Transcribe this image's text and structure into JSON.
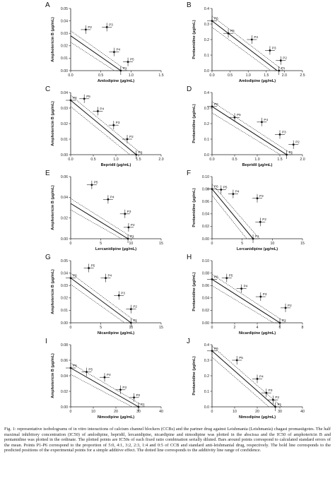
{
  "chart_data": [
    {
      "panel": "A",
      "type": "scatter",
      "xlabel": "Amlodipine (µg/mL)",
      "ylabel": "Amphotericin B (µg/mL)",
      "xlim": [
        0,
        1.5
      ],
      "ylim": [
        0,
        0.05
      ],
      "xticks": [
        "0.0",
        "0.5",
        "1.0",
        "1.5"
      ],
      "yticks": [
        "0.00",
        "0.01",
        "0.02",
        "0.03",
        "0.04",
        "0.05"
      ],
      "yintercept": 0.028,
      "xintercept": 0.83,
      "points": [
        {
          "label": "P1",
          "x": 0.83,
          "y": 0.0
        },
        {
          "label": "P2",
          "x": 0.25,
          "y": 0.033
        },
        {
          "label": "P3",
          "x": 0.6,
          "y": 0.035
        },
        {
          "label": "P4",
          "x": 0.72,
          "y": 0.015
        },
        {
          "label": "P5",
          "x": 0.95,
          "y": 0.007
        }
      ]
    },
    {
      "panel": "B",
      "type": "scatter",
      "xlabel": "Amlodipine (µg/mL)",
      "ylabel": "Pentamidine (µg/mL)",
      "xlim": [
        0,
        2.5
      ],
      "ylim": [
        0,
        0.4
      ],
      "xticks": [
        "0.0",
        "0.5",
        "1.0",
        "1.5",
        "2.0",
        "2.5"
      ],
      "yticks": [
        "0.0",
        "0.1",
        "0.2",
        "0.3",
        "0.4"
      ],
      "yintercept": 0.32,
      "xintercept": 1.8,
      "points": [
        {
          "label": "P6",
          "x": 0.0,
          "y": 0.32
        },
        {
          "label": "P5",
          "x": 0.45,
          "y": 0.24
        },
        {
          "label": "P4",
          "x": 1.1,
          "y": 0.2
        },
        {
          "label": "P3",
          "x": 1.6,
          "y": 0.13
        },
        {
          "label": "P2",
          "x": 1.9,
          "y": 0.065
        },
        {
          "label": "P1",
          "x": 1.85,
          "y": 0.0
        }
      ]
    },
    {
      "panel": "C",
      "type": "scatter",
      "xlabel": "Bepridil (µg/mL)",
      "ylabel": "Amphotericin B (µg/mL)",
      "xlim": [
        0,
        2.0
      ],
      "ylim": [
        0,
        0.04
      ],
      "xticks": [
        "0.0",
        "0.5",
        "1.0",
        "1.5",
        "2.0"
      ],
      "yticks": [
        "0.00",
        "0.01",
        "0.02",
        "0.03",
        "0.04"
      ],
      "yintercept": 0.035,
      "xintercept": 1.45,
      "points": [
        {
          "label": "P6",
          "x": 0.0,
          "y": 0.035
        },
        {
          "label": "P5",
          "x": 0.3,
          "y": 0.036
        },
        {
          "label": "P4",
          "x": 0.6,
          "y": 0.028
        },
        {
          "label": "P3",
          "x": 0.95,
          "y": 0.019
        },
        {
          "label": "P2",
          "x": 1.25,
          "y": 0.01
        },
        {
          "label": "P1",
          "x": 1.45,
          "y": 0.0
        }
      ]
    },
    {
      "panel": "D",
      "type": "scatter",
      "xlabel": "Bepridil (µg/mL)",
      "ylabel": "Pentamidine (µg/mL)",
      "xlim": [
        0,
        2.0
      ],
      "ylim": [
        0,
        0.4
      ],
      "xticks": [
        "0.0",
        "0.5",
        "1.0",
        "1.5",
        "2.0"
      ],
      "yticks": [
        "0.0",
        "0.1",
        "0.2",
        "0.3",
        "0.4"
      ],
      "yintercept": 0.31,
      "xintercept": 1.65,
      "points": [
        {
          "label": "P6",
          "x": 0.0,
          "y": 0.31
        },
        {
          "label": "P5",
          "x": 0.5,
          "y": 0.24
        },
        {
          "label": "P4",
          "x": 1.1,
          "y": 0.21
        },
        {
          "label": "P3",
          "x": 1.5,
          "y": 0.13
        },
        {
          "label": "P2",
          "x": 1.8,
          "y": 0.065
        },
        {
          "label": "P1",
          "x": 1.65,
          "y": 0.0
        }
      ]
    },
    {
      "panel": "E",
      "type": "scatter",
      "xlabel": "Lercanidipine (µg/mL)",
      "ylabel": "Amphotericin B (µg/mL)",
      "xlim": [
        0,
        15
      ],
      "ylim": [
        0,
        0.06
      ],
      "xticks": [
        "0",
        "5",
        "10",
        "15"
      ],
      "yticks": [
        "0.00",
        "0.02",
        "0.04",
        "0.06"
      ],
      "yintercept": 0.034,
      "xintercept": 9.5,
      "points": [
        {
          "label": "P5",
          "x": 3.5,
          "y": 0.052
        },
        {
          "label": "P4",
          "x": 6.2,
          "y": 0.038
        },
        {
          "label": "P3",
          "x": 9.0,
          "y": 0.024
        },
        {
          "label": "P2",
          "x": 9.6,
          "y": 0.011
        },
        {
          "label": "P1",
          "x": 9.5,
          "y": 0.0
        }
      ]
    },
    {
      "panel": "F",
      "type": "scatter",
      "xlabel": "Lercanidipine (µg/mL)",
      "ylabel": "Pentamidine (µg/mL)",
      "xlim": [
        0,
        15
      ],
      "ylim": [
        0,
        0.1
      ],
      "xticks": [
        "0",
        "5",
        "10",
        "15"
      ],
      "yticks": [
        "0.00",
        "0.02",
        "0.04",
        "0.06",
        "0.08",
        "0.10"
      ],
      "yintercept": 0.08,
      "xintercept": 6.8,
      "points": [
        {
          "label": "P6",
          "x": 0.0,
          "y": 0.08
        },
        {
          "label": "P5",
          "x": 1.5,
          "y": 0.079
        },
        {
          "label": "P4",
          "x": 3.5,
          "y": 0.072
        },
        {
          "label": "P3",
          "x": 7.5,
          "y": 0.065
        },
        {
          "label": "P2",
          "x": 8.0,
          "y": 0.027
        },
        {
          "label": "P1",
          "x": 6.8,
          "y": 0.0
        }
      ]
    },
    {
      "panel": "G",
      "type": "scatter",
      "xlabel": "Nicardipine (µg/mL)",
      "ylabel": "Amphotericin B (µg/mL)",
      "xlim": [
        0,
        15
      ],
      "ylim": [
        0,
        0.05
      ],
      "xticks": [
        "0",
        "5",
        "10",
        "15"
      ],
      "yticks": [
        "0.00",
        "0.01",
        "0.02",
        "0.03",
        "0.04",
        "0.05"
      ],
      "yintercept": 0.036,
      "xintercept": 10.0,
      "points": [
        {
          "label": "P6",
          "x": 0.0,
          "y": 0.036
        },
        {
          "label": "P5",
          "x": 3.0,
          "y": 0.044
        },
        {
          "label": "P4",
          "x": 5.8,
          "y": 0.036
        },
        {
          "label": "P3",
          "x": 8.0,
          "y": 0.022
        },
        {
          "label": "P2",
          "x": 10.0,
          "y": 0.011
        },
        {
          "label": "P1",
          "x": 10.0,
          "y": 0.0
        }
      ]
    },
    {
      "panel": "H",
      "type": "scatter",
      "xlabel": "Nicardipine (µg/mL)",
      "ylabel": "Pentamidine (µg/mL)",
      "xlim": [
        0,
        8
      ],
      "ylim": [
        0,
        0.1
      ],
      "xticks": [
        "0",
        "2",
        "4",
        "6",
        "8"
      ],
      "yticks": [
        "0.00",
        "0.02",
        "0.04",
        "0.06",
        "0.08",
        "0.10"
      ],
      "yintercept": 0.07,
      "xintercept": 6.0,
      "points": [
        {
          "label": "P6",
          "x": 0.0,
          "y": 0.07
        },
        {
          "label": "P5",
          "x": 1.3,
          "y": 0.072
        },
        {
          "label": "P4",
          "x": 2.6,
          "y": 0.055
        },
        {
          "label": "P3",
          "x": 4.3,
          "y": 0.042
        },
        {
          "label": "P2",
          "x": 6.5,
          "y": 0.024
        },
        {
          "label": "P1",
          "x": 6.0,
          "y": 0.0
        }
      ]
    },
    {
      "panel": "I",
      "type": "scatter",
      "xlabel": "Nimodipine (µg/mL)",
      "ylabel": "Amphotericin B (µg/mL)",
      "xlim": [
        0,
        40
      ],
      "ylim": [
        0,
        0.08
      ],
      "xticks": [
        "0",
        "10",
        "20",
        "30",
        "40"
      ],
      "yticks": [
        "0.00",
        "0.02",
        "0.04",
        "0.06",
        "0.08"
      ],
      "yintercept": 0.05,
      "xintercept": 30.0,
      "points": [
        {
          "label": "P6",
          "x": 0.0,
          "y": 0.05
        },
        {
          "label": "P5",
          "x": 7.0,
          "y": 0.045
        },
        {
          "label": "P4",
          "x": 15.0,
          "y": 0.038
        },
        {
          "label": "P3",
          "x": 22.0,
          "y": 0.022
        },
        {
          "label": "P2",
          "x": 28.0,
          "y": 0.012
        },
        {
          "label": "P1",
          "x": 30.0,
          "y": 0.0
        }
      ]
    },
    {
      "panel": "J",
      "type": "scatter",
      "xlabel": "Nimodipine (µg/mL)",
      "ylabel": "Pentamidine (µg/mL)",
      "xlim": [
        0,
        40
      ],
      "ylim": [
        0,
        0.4
      ],
      "xticks": [
        "0",
        "10",
        "20",
        "30",
        "40"
      ],
      "yticks": [
        "0.0",
        "0.1",
        "0.2",
        "0.3",
        "0.4"
      ],
      "yintercept": 0.36,
      "xintercept": 28.0,
      "points": [
        {
          "label": "P6",
          "x": 0.0,
          "y": 0.36
        },
        {
          "label": "P5",
          "x": 11.0,
          "y": 0.3
        },
        {
          "label": "P4",
          "x": 20.0,
          "y": 0.18
        },
        {
          "label": "P3",
          "x": 24.0,
          "y": 0.09
        },
        {
          "label": "P2",
          "x": 27.0,
          "y": 0.045
        },
        {
          "label": "P1",
          "x": 28.0,
          "y": 0.0
        }
      ]
    }
  ],
  "caption": "Fig. 1: representative isobolograms of in vitro interactions of calcium channel blockers (CCBs) and the partner drug against Leishmania (Leishmania) chagasi promastigotes. The half maximal inhibitory concentration (IC50) of amlodipine, bepridil, lercanidipine, nicardipine and nimodipine was plotted in the abscissa and the IC50 of amphotericin B and pentamidine was plotted in the ordinate. The plotted points are IC50s of each fixed ratio combination serially diluted. Bars around points correspond to calculated standard errors of the mean. Points P1-P6 correspond to the proportion of 5:0, 4:1, 3:2, 2:3, 1:4 and 0:5 of CCB and standard anti-leishmanial drug, respectively. The bold line corresponds to the predicted positions of the experimental points for a simple additive effect. The dotted line corresponds to the additivity line range of confidence."
}
